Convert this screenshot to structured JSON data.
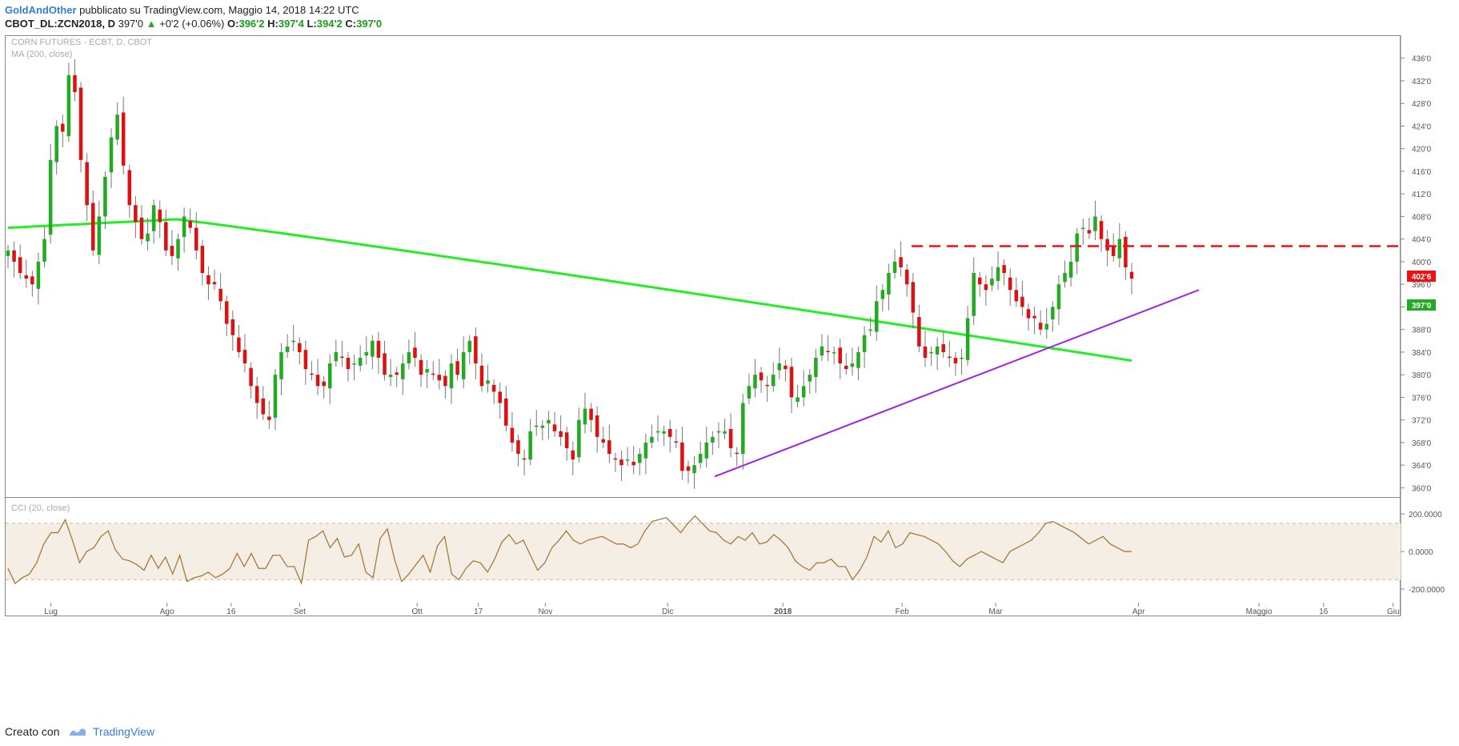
{
  "header": {
    "author": "GoldAndOther",
    "published_text": "pubblicato su TradingView.com, Maggio 14, 2018 14:22 UTC",
    "symbol": "CBOT_DL:ZCN2018, D",
    "last": "397'0",
    "change": "+0'2 (+0.06%)",
    "o_label": "O:",
    "o_val": "396'2",
    "h_label": "H:",
    "h_val": "397'4",
    "l_label": "L:",
    "l_val": "394'2",
    "c_label": "C:",
    "c_val": "397'0"
  },
  "main_pane": {
    "title": "CORN FUTURES - ECBT, D, CBOT",
    "indicator": "MA (200, close)",
    "price_tag_red": "402'6",
    "price_tag_green": "397'0"
  },
  "cci_pane": {
    "title": "CCI (20, close)",
    "ticks": [
      "200.0000",
      "0.0000",
      "-200.0000"
    ]
  },
  "footer": {
    "created_with": "Creato con",
    "brand": "TradingView"
  },
  "colors": {
    "up": "#22aa22",
    "down": "#dd1111",
    "ma": "#22ee22",
    "trendline": "#9922ee",
    "resistance": "#ee1111",
    "cci_line": "#a07030",
    "cci_band": "#f5eee4"
  },
  "chart_data": [
    {
      "type": "candlestick",
      "title": "CORN FUTURES - ECBT, D, CBOT",
      "y_axis_ticks": [
        "436'0",
        "432'0",
        "428'0",
        "424'0",
        "420'0",
        "416'0",
        "412'0",
        "408'0",
        "404'0",
        "400'0",
        "396'0",
        "392'0",
        "388'0",
        "384'0",
        "380'0",
        "376'0",
        "372'0",
        "368'0",
        "364'0",
        "360'0"
      ],
      "ylim": [
        358.5,
        439.5
      ],
      "x_axis_labels": [
        "Lug",
        "Ago",
        "16",
        "Set",
        "Ott",
        "17",
        "Nov",
        "Dic",
        "2018",
        "Feb",
        "Mar",
        "Apr",
        "Maggio",
        "16",
        "Giu"
      ],
      "close_series": [
        402,
        400,
        398,
        397,
        396,
        400,
        404,
        418,
        424,
        423,
        433,
        430,
        418,
        410,
        402,
        408,
        415,
        422,
        426,
        417,
        410,
        407,
        404,
        405,
        410,
        407,
        402,
        401,
        404,
        408,
        406,
        402,
        398,
        396,
        396,
        393,
        389,
        387,
        384,
        382,
        378,
        375,
        373,
        372,
        380,
        384,
        385,
        386,
        384,
        381,
        380,
        378,
        378,
        382,
        384,
        383,
        381,
        382,
        383,
        384,
        386,
        383,
        380,
        380,
        380,
        382,
        384,
        383,
        380,
        381,
        380,
        379,
        378,
        382,
        380,
        384,
        386,
        382,
        378,
        379,
        377,
        375,
        371,
        368,
        366,
        365,
        370,
        371,
        371,
        372,
        370,
        369,
        367,
        365,
        372,
        374,
        372,
        369,
        368,
        366,
        365,
        364,
        365,
        364,
        366,
        368,
        369,
        370,
        370,
        369,
        368,
        363,
        363,
        364,
        366,
        368,
        369,
        370,
        370,
        367,
        366,
        375,
        378,
        380,
        379,
        378,
        380,
        382,
        381,
        376,
        376,
        378,
        380,
        383,
        385,
        384,
        384,
        382,
        381,
        382,
        384,
        387,
        388,
        393,
        395,
        398,
        400,
        399,
        396,
        391,
        385,
        383,
        384,
        385,
        384,
        383,
        382,
        383,
        390,
        398,
        396,
        395,
        397,
        399,
        398,
        395,
        393,
        392,
        390,
        390,
        388,
        389,
        392,
        396,
        398,
        400,
        405,
        406,
        405,
        408,
        404,
        402,
        401,
        404,
        399,
        397
      ],
      "ma200": {
        "name": "MA (200, close)",
        "start": 406,
        "peak": 407.5,
        "end": 382.5
      },
      "trendline": {
        "from_value": 362,
        "to_value": 395
      },
      "resistance": 402.75,
      "last_price": 397.0
    },
    {
      "type": "line",
      "title": "CCI (20, close)",
      "ylim": [
        -260,
        260
      ],
      "y_axis_ticks": [
        200,
        0,
        -200
      ],
      "band": [
        150,
        -150
      ],
      "values": [
        -90,
        -170,
        -140,
        -120,
        -60,
        40,
        100,
        100,
        170,
        60,
        -60,
        0,
        20,
        80,
        110,
        10,
        -40,
        -50,
        -70,
        -100,
        -20,
        -90,
        -30,
        -120,
        -20,
        -160,
        -140,
        -130,
        -110,
        -140,
        -120,
        -90,
        -10,
        -80,
        -10,
        -90,
        -90,
        -20,
        -20,
        -80,
        -80,
        -170,
        60,
        80,
        110,
        20,
        70,
        -30,
        -20,
        40,
        -110,
        -140,
        70,
        120,
        -40,
        -160,
        -120,
        -70,
        -20,
        -110,
        30,
        80,
        -120,
        -150,
        -90,
        -50,
        -60,
        -110,
        -40,
        50,
        90,
        40,
        60,
        -20,
        -100,
        -60,
        20,
        60,
        110,
        60,
        40,
        60,
        70,
        80,
        60,
        40,
        40,
        20,
        40,
        110,
        160,
        170,
        180,
        140,
        100,
        150,
        190,
        150,
        110,
        100,
        60,
        40,
        80,
        60,
        100,
        40,
        50,
        90,
        60,
        20,
        -50,
        -80,
        -100,
        -60,
        -60,
        -40,
        -80,
        -80,
        -150,
        -100,
        -30,
        80,
        50,
        110,
        20,
        40,
        100,
        90,
        80,
        60,
        40,
        0,
        -50,
        -80,
        -40,
        -20,
        0,
        -20,
        -40,
        -60,
        0,
        20,
        40,
        60,
        100,
        150,
        160,
        140,
        120,
        100,
        70,
        40,
        60,
        80,
        40,
        20,
        0,
        0
      ]
    }
  ]
}
